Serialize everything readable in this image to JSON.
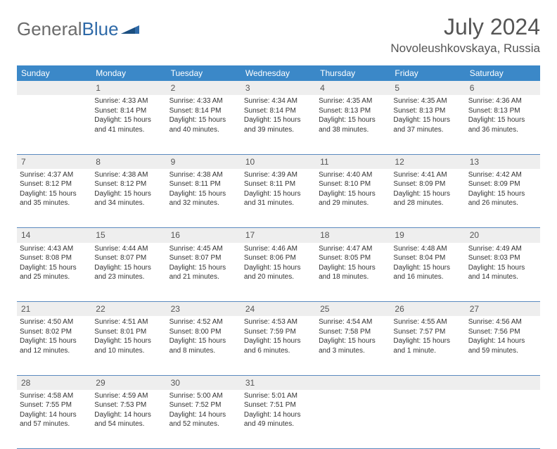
{
  "logo": {
    "part1": "General",
    "part2": "Blue"
  },
  "title": "July 2024",
  "location": "Novoleushkovskaya, Russia",
  "header_bg": "#3b88c8",
  "header_fg": "#ffffff",
  "daynum_bg": "#eeeeee",
  "rule_color": "#5a8abf",
  "days_of_week": [
    "Sunday",
    "Monday",
    "Tuesday",
    "Wednesday",
    "Thursday",
    "Friday",
    "Saturday"
  ],
  "weeks": [
    {
      "nums": [
        "",
        "1",
        "2",
        "3",
        "4",
        "5",
        "6"
      ],
      "cells": [
        null,
        {
          "sunrise": "Sunrise: 4:33 AM",
          "sunset": "Sunset: 8:14 PM",
          "daylight": "Daylight: 15 hours and 41 minutes."
        },
        {
          "sunrise": "Sunrise: 4:33 AM",
          "sunset": "Sunset: 8:14 PM",
          "daylight": "Daylight: 15 hours and 40 minutes."
        },
        {
          "sunrise": "Sunrise: 4:34 AM",
          "sunset": "Sunset: 8:14 PM",
          "daylight": "Daylight: 15 hours and 39 minutes."
        },
        {
          "sunrise": "Sunrise: 4:35 AM",
          "sunset": "Sunset: 8:13 PM",
          "daylight": "Daylight: 15 hours and 38 minutes."
        },
        {
          "sunrise": "Sunrise: 4:35 AM",
          "sunset": "Sunset: 8:13 PM",
          "daylight": "Daylight: 15 hours and 37 minutes."
        },
        {
          "sunrise": "Sunrise: 4:36 AM",
          "sunset": "Sunset: 8:13 PM",
          "daylight": "Daylight: 15 hours and 36 minutes."
        }
      ]
    },
    {
      "nums": [
        "7",
        "8",
        "9",
        "10",
        "11",
        "12",
        "13"
      ],
      "cells": [
        {
          "sunrise": "Sunrise: 4:37 AM",
          "sunset": "Sunset: 8:12 PM",
          "daylight": "Daylight: 15 hours and 35 minutes."
        },
        {
          "sunrise": "Sunrise: 4:38 AM",
          "sunset": "Sunset: 8:12 PM",
          "daylight": "Daylight: 15 hours and 34 minutes."
        },
        {
          "sunrise": "Sunrise: 4:38 AM",
          "sunset": "Sunset: 8:11 PM",
          "daylight": "Daylight: 15 hours and 32 minutes."
        },
        {
          "sunrise": "Sunrise: 4:39 AM",
          "sunset": "Sunset: 8:11 PM",
          "daylight": "Daylight: 15 hours and 31 minutes."
        },
        {
          "sunrise": "Sunrise: 4:40 AM",
          "sunset": "Sunset: 8:10 PM",
          "daylight": "Daylight: 15 hours and 29 minutes."
        },
        {
          "sunrise": "Sunrise: 4:41 AM",
          "sunset": "Sunset: 8:09 PM",
          "daylight": "Daylight: 15 hours and 28 minutes."
        },
        {
          "sunrise": "Sunrise: 4:42 AM",
          "sunset": "Sunset: 8:09 PM",
          "daylight": "Daylight: 15 hours and 26 minutes."
        }
      ]
    },
    {
      "nums": [
        "14",
        "15",
        "16",
        "17",
        "18",
        "19",
        "20"
      ],
      "cells": [
        {
          "sunrise": "Sunrise: 4:43 AM",
          "sunset": "Sunset: 8:08 PM",
          "daylight": "Daylight: 15 hours and 25 minutes."
        },
        {
          "sunrise": "Sunrise: 4:44 AM",
          "sunset": "Sunset: 8:07 PM",
          "daylight": "Daylight: 15 hours and 23 minutes."
        },
        {
          "sunrise": "Sunrise: 4:45 AM",
          "sunset": "Sunset: 8:07 PM",
          "daylight": "Daylight: 15 hours and 21 minutes."
        },
        {
          "sunrise": "Sunrise: 4:46 AM",
          "sunset": "Sunset: 8:06 PM",
          "daylight": "Daylight: 15 hours and 20 minutes."
        },
        {
          "sunrise": "Sunrise: 4:47 AM",
          "sunset": "Sunset: 8:05 PM",
          "daylight": "Daylight: 15 hours and 18 minutes."
        },
        {
          "sunrise": "Sunrise: 4:48 AM",
          "sunset": "Sunset: 8:04 PM",
          "daylight": "Daylight: 15 hours and 16 minutes."
        },
        {
          "sunrise": "Sunrise: 4:49 AM",
          "sunset": "Sunset: 8:03 PM",
          "daylight": "Daylight: 15 hours and 14 minutes."
        }
      ]
    },
    {
      "nums": [
        "21",
        "22",
        "23",
        "24",
        "25",
        "26",
        "27"
      ],
      "cells": [
        {
          "sunrise": "Sunrise: 4:50 AM",
          "sunset": "Sunset: 8:02 PM",
          "daylight": "Daylight: 15 hours and 12 minutes."
        },
        {
          "sunrise": "Sunrise: 4:51 AM",
          "sunset": "Sunset: 8:01 PM",
          "daylight": "Daylight: 15 hours and 10 minutes."
        },
        {
          "sunrise": "Sunrise: 4:52 AM",
          "sunset": "Sunset: 8:00 PM",
          "daylight": "Daylight: 15 hours and 8 minutes."
        },
        {
          "sunrise": "Sunrise: 4:53 AM",
          "sunset": "Sunset: 7:59 PM",
          "daylight": "Daylight: 15 hours and 6 minutes."
        },
        {
          "sunrise": "Sunrise: 4:54 AM",
          "sunset": "Sunset: 7:58 PM",
          "daylight": "Daylight: 15 hours and 3 minutes."
        },
        {
          "sunrise": "Sunrise: 4:55 AM",
          "sunset": "Sunset: 7:57 PM",
          "daylight": "Daylight: 15 hours and 1 minute."
        },
        {
          "sunrise": "Sunrise: 4:56 AM",
          "sunset": "Sunset: 7:56 PM",
          "daylight": "Daylight: 14 hours and 59 minutes."
        }
      ]
    },
    {
      "nums": [
        "28",
        "29",
        "30",
        "31",
        "",
        "",
        ""
      ],
      "cells": [
        {
          "sunrise": "Sunrise: 4:58 AM",
          "sunset": "Sunset: 7:55 PM",
          "daylight": "Daylight: 14 hours and 57 minutes."
        },
        {
          "sunrise": "Sunrise: 4:59 AM",
          "sunset": "Sunset: 7:53 PM",
          "daylight": "Daylight: 14 hours and 54 minutes."
        },
        {
          "sunrise": "Sunrise: 5:00 AM",
          "sunset": "Sunset: 7:52 PM",
          "daylight": "Daylight: 14 hours and 52 minutes."
        },
        {
          "sunrise": "Sunrise: 5:01 AM",
          "sunset": "Sunset: 7:51 PM",
          "daylight": "Daylight: 14 hours and 49 minutes."
        },
        null,
        null,
        null
      ]
    }
  ]
}
